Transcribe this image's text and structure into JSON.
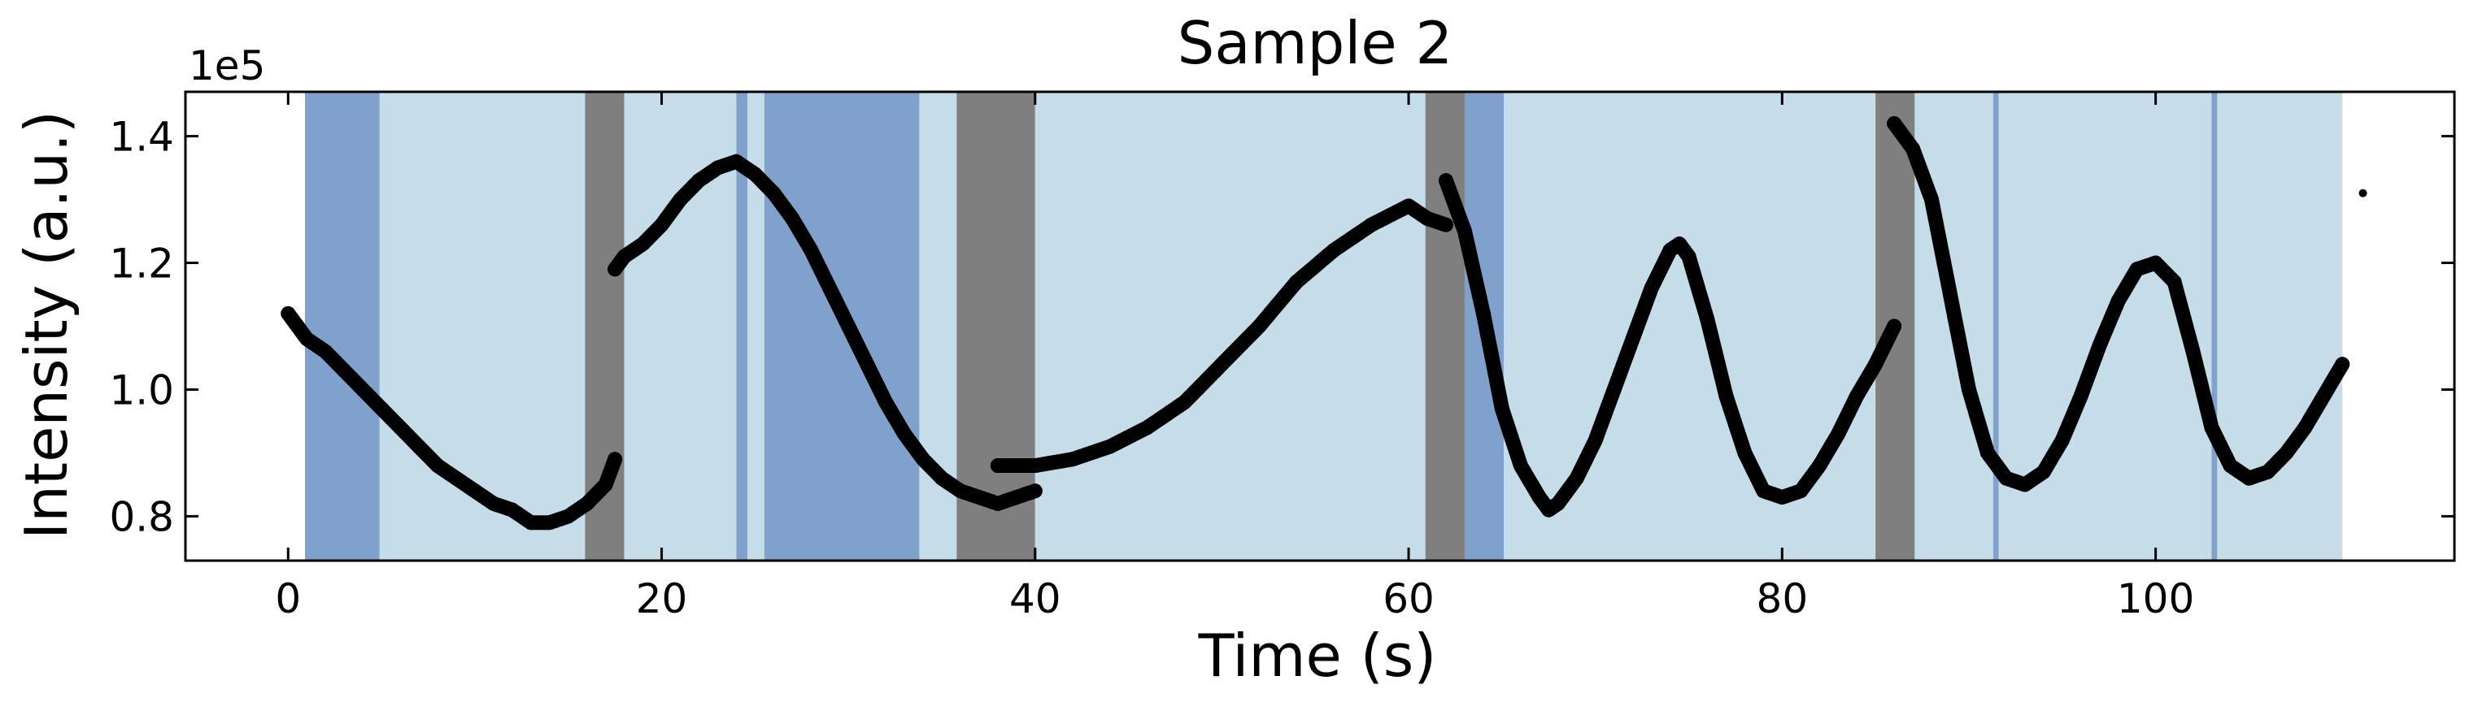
{
  "chart_data": {
    "type": "scatter",
    "title": "Sample 2",
    "xlabel": "Time (s)",
    "ylabel": "Intensity (a.u.)",
    "y_offset_label": "1e5",
    "y_scale_exponent": 5,
    "xlim": [
      -5.5,
      116
    ],
    "ylim": [
      0.73,
      1.47
    ],
    "xticks": [
      0,
      20,
      40,
      60,
      80,
      100
    ],
    "xtick_labels": [
      "0",
      "20",
      "40",
      "60",
      "80",
      "100"
    ],
    "yticks": [
      0.8,
      1.0,
      1.2,
      1.4
    ],
    "ytick_labels": [
      "0.8",
      "1.0",
      "1.2",
      "1.4"
    ],
    "grid": false,
    "colors": {
      "light_band": "#c5dde8",
      "dark_blue_band": "#7fa1cc",
      "gray_band": "#7f7f7f",
      "points": "#000000"
    },
    "bands": [
      {
        "x0": 0.9,
        "x1": 4.9,
        "kind": "dark_blue"
      },
      {
        "x0": 4.9,
        "x1": 15.9,
        "kind": "light"
      },
      {
        "x0": 15.9,
        "x1": 18.0,
        "kind": "gray"
      },
      {
        "x0": 18.0,
        "x1": 24.0,
        "kind": "light"
      },
      {
        "x0": 24.0,
        "x1": 24.6,
        "kind": "dark_blue"
      },
      {
        "x0": 24.6,
        "x1": 25.5,
        "kind": "light"
      },
      {
        "x0": 25.5,
        "x1": 33.8,
        "kind": "dark_blue"
      },
      {
        "x0": 33.8,
        "x1": 35.8,
        "kind": "light"
      },
      {
        "x0": 35.8,
        "x1": 40.0,
        "kind": "gray"
      },
      {
        "x0": 40.0,
        "x1": 60.9,
        "kind": "light"
      },
      {
        "x0": 60.9,
        "x1": 63.0,
        "kind": "gray"
      },
      {
        "x0": 63.0,
        "x1": 65.1,
        "kind": "dark_blue"
      },
      {
        "x0": 65.1,
        "x1": 85.0,
        "kind": "light"
      },
      {
        "x0": 85.0,
        "x1": 87.1,
        "kind": "gray"
      },
      {
        "x0": 87.1,
        "x1": 91.3,
        "kind": "light"
      },
      {
        "x0": 91.3,
        "x1": 91.6,
        "kind": "dark_blue"
      },
      {
        "x0": 91.6,
        "x1": 103.0,
        "kind": "light"
      },
      {
        "x0": 103.0,
        "x1": 103.3,
        "kind": "dark_blue"
      },
      {
        "x0": 103.3,
        "x1": 110.0,
        "kind": "light"
      }
    ],
    "series": [
      {
        "x": [
          0,
          0.5,
          1,
          2,
          3,
          4,
          5,
          6,
          7,
          8,
          9,
          10,
          11,
          12,
          13,
          14,
          15,
          16,
          17,
          17.5
        ],
        "y": [
          1.12,
          1.1,
          1.08,
          1.06,
          1.03,
          1.0,
          0.97,
          0.94,
          0.91,
          0.88,
          0.86,
          0.84,
          0.82,
          0.81,
          0.79,
          0.79,
          0.8,
          0.82,
          0.85,
          0.89
        ]
      },
      {
        "x": [
          17.5,
          18,
          19,
          20,
          21,
          22,
          23,
          24,
          25,
          26,
          27,
          28,
          29,
          30,
          31,
          32,
          33,
          34,
          35,
          36,
          37,
          38,
          39,
          40
        ],
        "y": [
          1.19,
          1.21,
          1.23,
          1.26,
          1.3,
          1.33,
          1.35,
          1.36,
          1.34,
          1.31,
          1.27,
          1.22,
          1.16,
          1.1,
          1.04,
          0.98,
          0.93,
          0.89,
          0.86,
          0.84,
          0.83,
          0.82,
          0.83,
          0.84
        ]
      },
      {
        "x": [
          38,
          40,
          42,
          44,
          46,
          48,
          50,
          52,
          54,
          56,
          58,
          60,
          61,
          62
        ],
        "y": [
          0.88,
          0.88,
          0.89,
          0.91,
          0.94,
          0.98,
          1.04,
          1.1,
          1.17,
          1.22,
          1.26,
          1.29,
          1.27,
          1.26
        ]
      },
      {
        "x": [
          62,
          63,
          64,
          65,
          66,
          67,
          67.5,
          68,
          69,
          70,
          71,
          72,
          73,
          74,
          74.5,
          75,
          76,
          77,
          78,
          79,
          80,
          81,
          82,
          83,
          84,
          85,
          86
        ],
        "y": [
          1.33,
          1.25,
          1.12,
          0.97,
          0.88,
          0.83,
          0.81,
          0.82,
          0.86,
          0.92,
          1.0,
          1.08,
          1.16,
          1.22,
          1.23,
          1.21,
          1.11,
          0.99,
          0.9,
          0.84,
          0.83,
          0.84,
          0.88,
          0.93,
          0.99,
          1.04,
          1.1
        ]
      },
      {
        "x": [
          86,
          87,
          88,
          89,
          90,
          91,
          92,
          93,
          94,
          95,
          96,
          97,
          98,
          99,
          100,
          101,
          102,
          103,
          104,
          105,
          106,
          107,
          108,
          109,
          110
        ],
        "y": [
          1.42,
          1.38,
          1.3,
          1.15,
          1.0,
          0.9,
          0.86,
          0.85,
          0.87,
          0.92,
          0.99,
          1.07,
          1.14,
          1.19,
          1.2,
          1.17,
          1.06,
          0.94,
          0.88,
          0.86,
          0.87,
          0.9,
          0.94,
          0.99,
          1.04
        ]
      },
      {
        "x": [
          111.1
        ],
        "y": [
          1.31
        ]
      }
    ]
  }
}
